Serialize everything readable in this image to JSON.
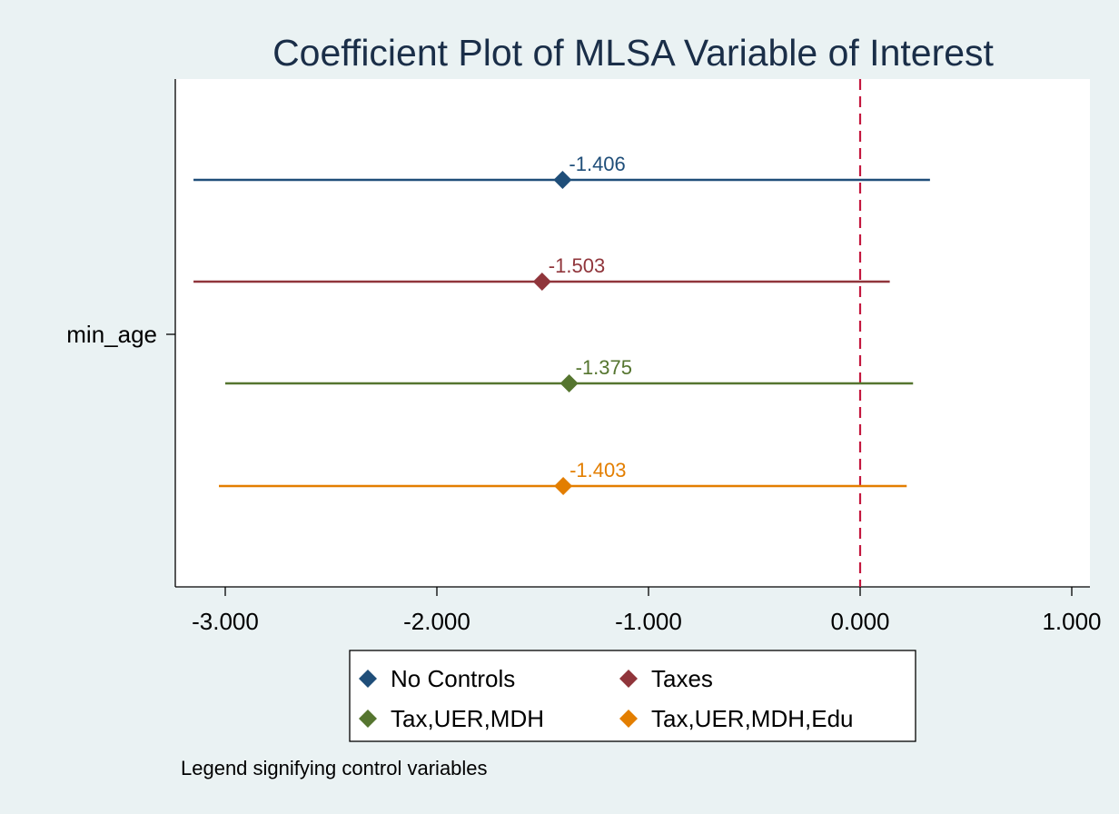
{
  "chart_data": {
    "type": "coefficient-plot",
    "title": "Coefficient Plot of MLSA Variable of Interest",
    "xlabel": "",
    "ylabel": "",
    "xlim": [
      -3.2,
      1.1
    ],
    "xticks": [
      -3,
      -2,
      -1,
      0,
      1
    ],
    "x_tick_labels": [
      "-3.000",
      "-2.000",
      "-1.000",
      "0.000",
      "1.000"
    ],
    "y_categories": [
      "min_age"
    ],
    "reference_line": {
      "x": 0,
      "style": "dashed",
      "color": "#c4173e"
    },
    "grid": false,
    "series": [
      {
        "name": "No Controls",
        "estimate": -1.406,
        "label": "-1.406",
        "ci": [
          -3.15,
          0.33
        ],
        "color": "#1f4e79"
      },
      {
        "name": "Taxes",
        "estimate": -1.503,
        "label": "-1.503",
        "ci": [
          -3.15,
          0.14
        ],
        "color": "#90353b"
      },
      {
        "name": "Tax,UER,MDH",
        "estimate": -1.375,
        "label": "-1.375",
        "ci": [
          -3.0,
          0.25
        ],
        "color": "#55752f"
      },
      {
        "name": "Tax,UER,MDH,Edu",
        "estimate": -1.403,
        "label": "-1.403",
        "ci": [
          -3.03,
          0.22
        ],
        "color": "#e37e00"
      }
    ],
    "legend_position": "bottom",
    "note": "Legend signifying control variables"
  }
}
